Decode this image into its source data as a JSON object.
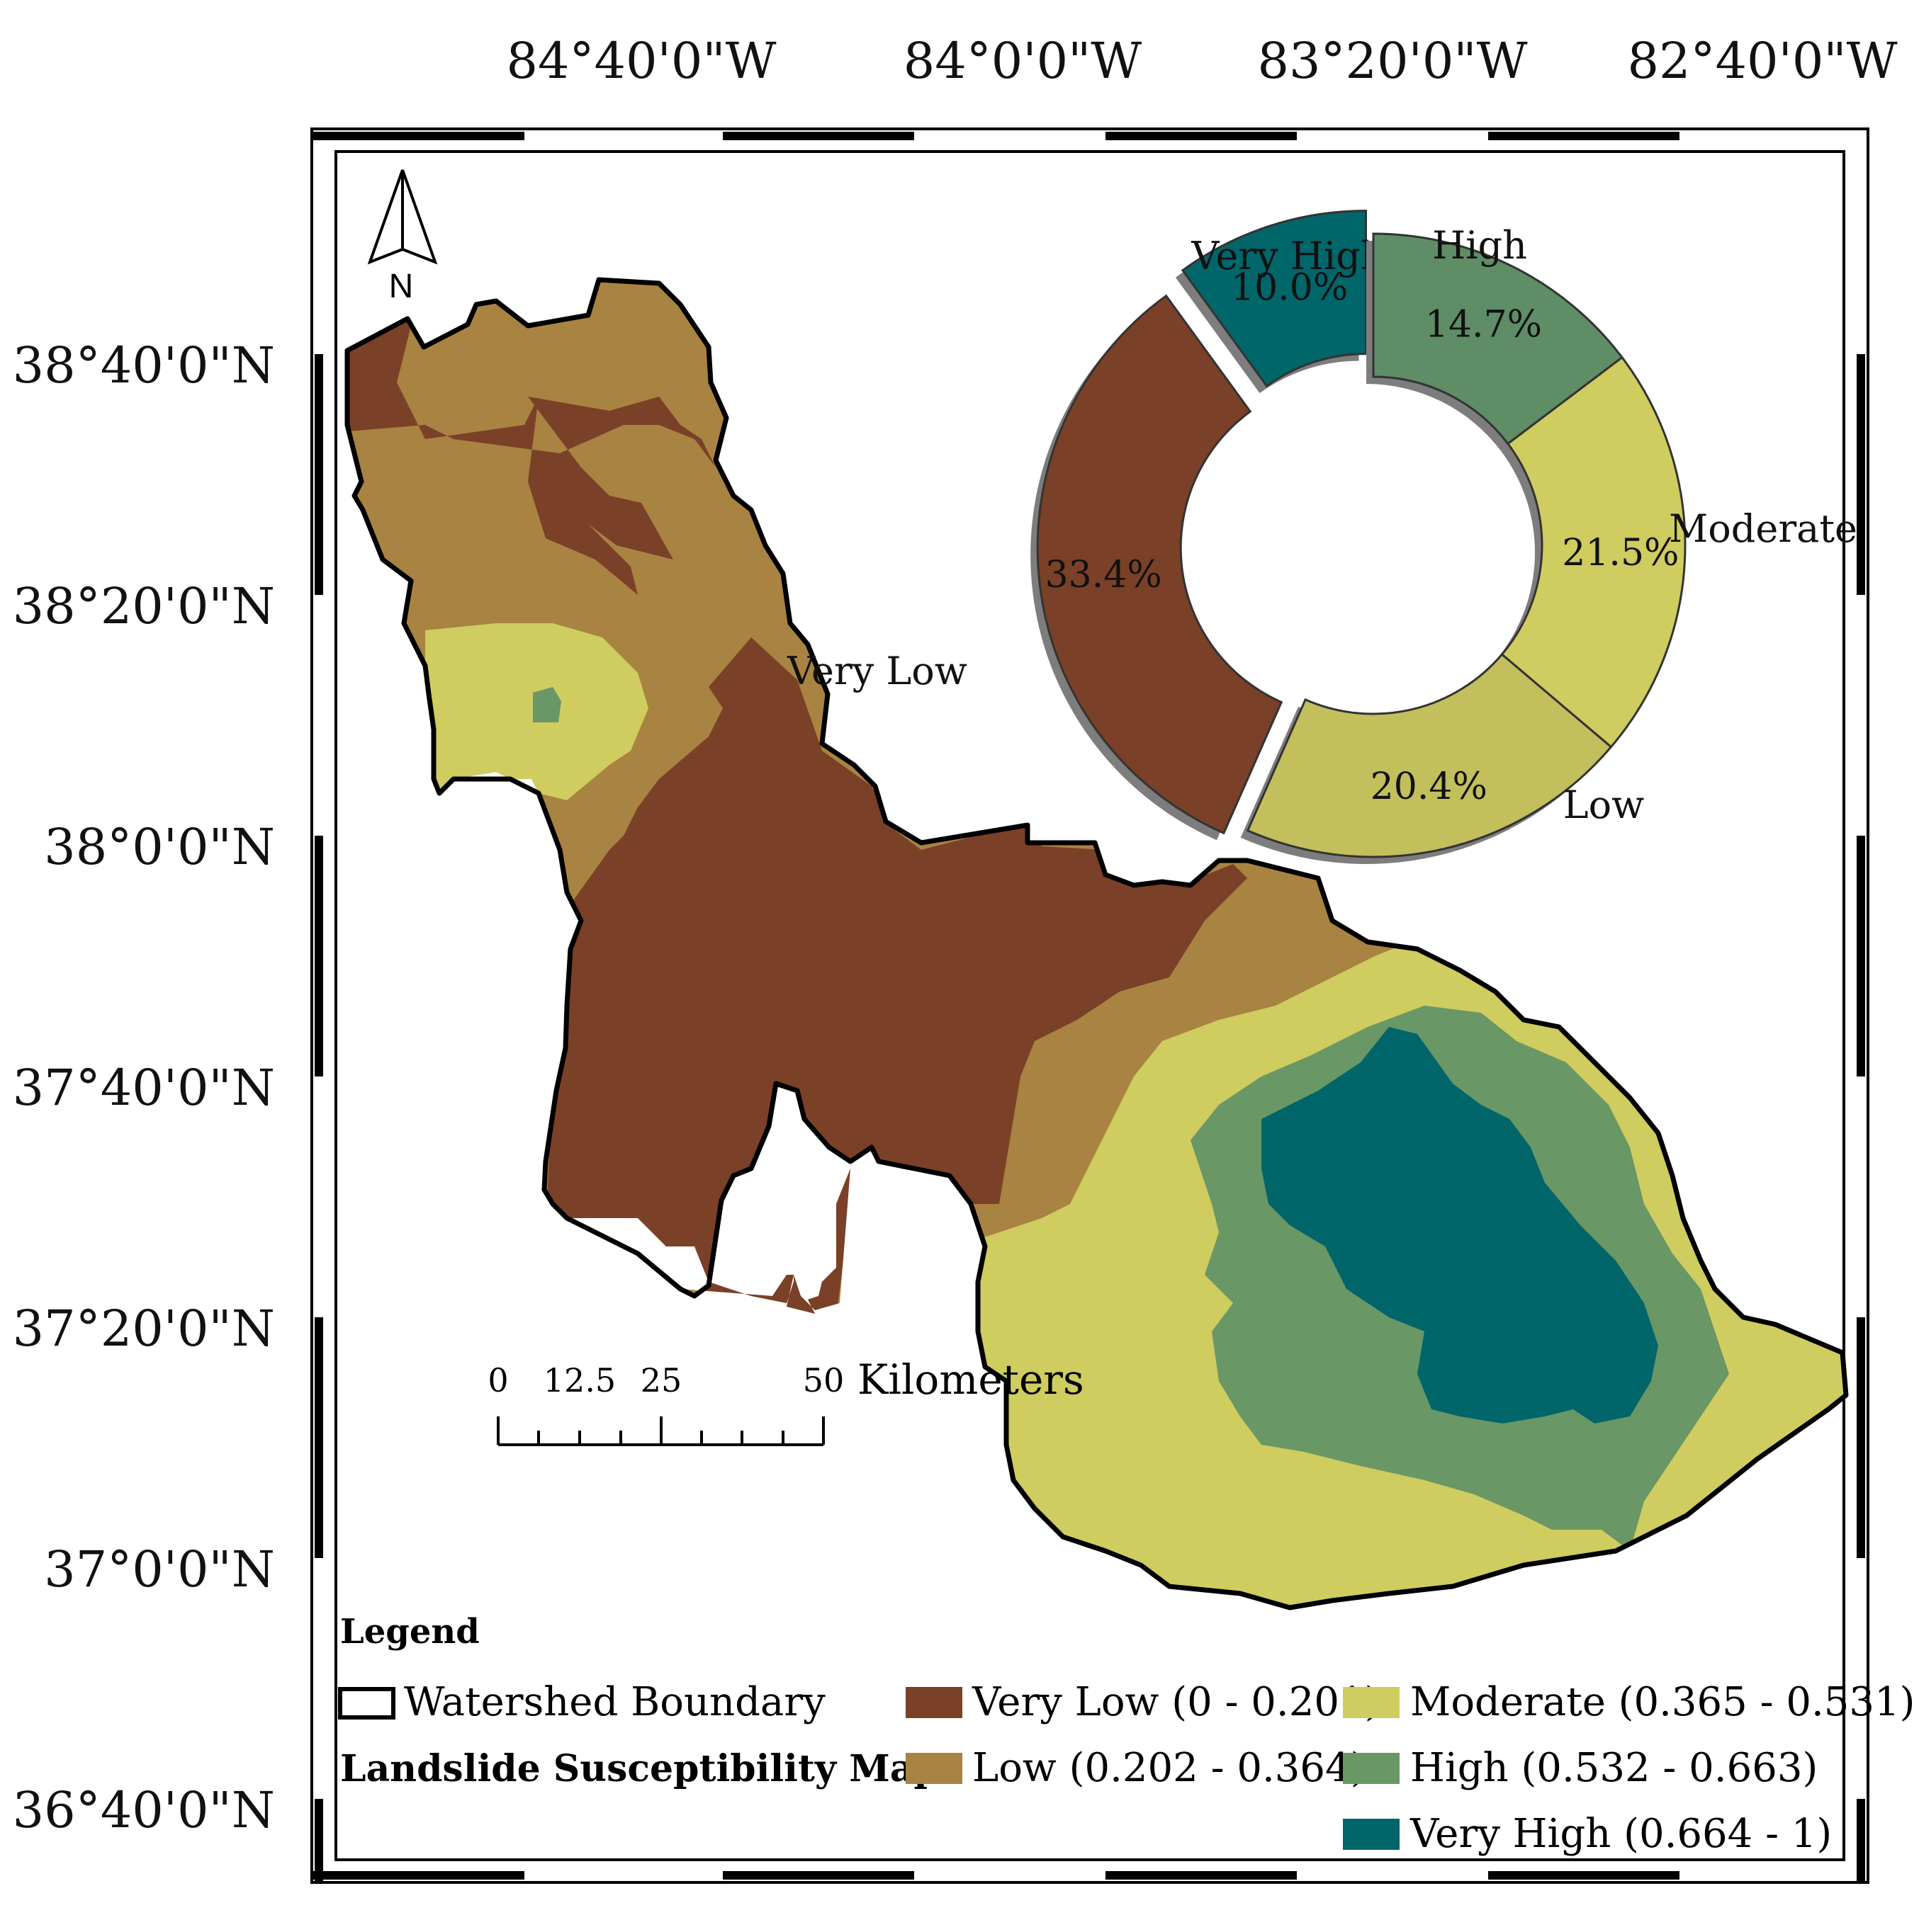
{
  "map": {
    "axes": {
      "lon_labels": [
        "84°40'0\"W",
        "84°0'0\"W",
        "83°20'0\"W",
        "82°40'0\"W"
      ],
      "lat_labels": [
        "38°40'0\"N",
        "38°20'0\"N",
        "38°0'0\"N",
        "37°40'0\"N",
        "37°20'0\"N",
        "37°0'0\"N",
        "36°40'0\"N"
      ]
    },
    "north_arrow": {
      "label": "N"
    },
    "scale_bar": {
      "ticks": [
        "0",
        "12.5",
        "25",
        "50"
      ],
      "unit": "Kilometers"
    },
    "legend": {
      "title": "Legend",
      "boundary_label": "Watershed Boundary",
      "map_title": "Landslide Susceptibility Map",
      "classes": [
        {
          "label": "Very Low (0 - 0.201)",
          "color": "#7a4028"
        },
        {
          "label": "Low (0.202 - 0.364)",
          "color": "#a98341"
        },
        {
          "label": "Moderate (0.365 - 0.531)",
          "color": "#cfcc60"
        },
        {
          "label": "High (0.532 - 0.663)",
          "color": "#6a9766"
        },
        {
          "label": "Very High (0.664 - 1)",
          "color": "#00666a"
        }
      ]
    }
  },
  "chart_data": {
    "type": "pie",
    "slices": [
      {
        "name": "Very High",
        "value": 10.0,
        "label": "10.0%",
        "color": "#00666a"
      },
      {
        "name": "High",
        "value": 14.7,
        "label": "14.7%",
        "color": "#5e8d66"
      },
      {
        "name": "Moderate",
        "value": 21.5,
        "label": "21.5%",
        "color": "#cfcc60"
      },
      {
        "name": "Low",
        "value": 20.4,
        "label": "20.4%",
        "color": "#c2bf5c"
      },
      {
        "name": "Very Low",
        "value": 33.4,
        "label": "33.4%",
        "color": "#7a4028"
      }
    ]
  }
}
